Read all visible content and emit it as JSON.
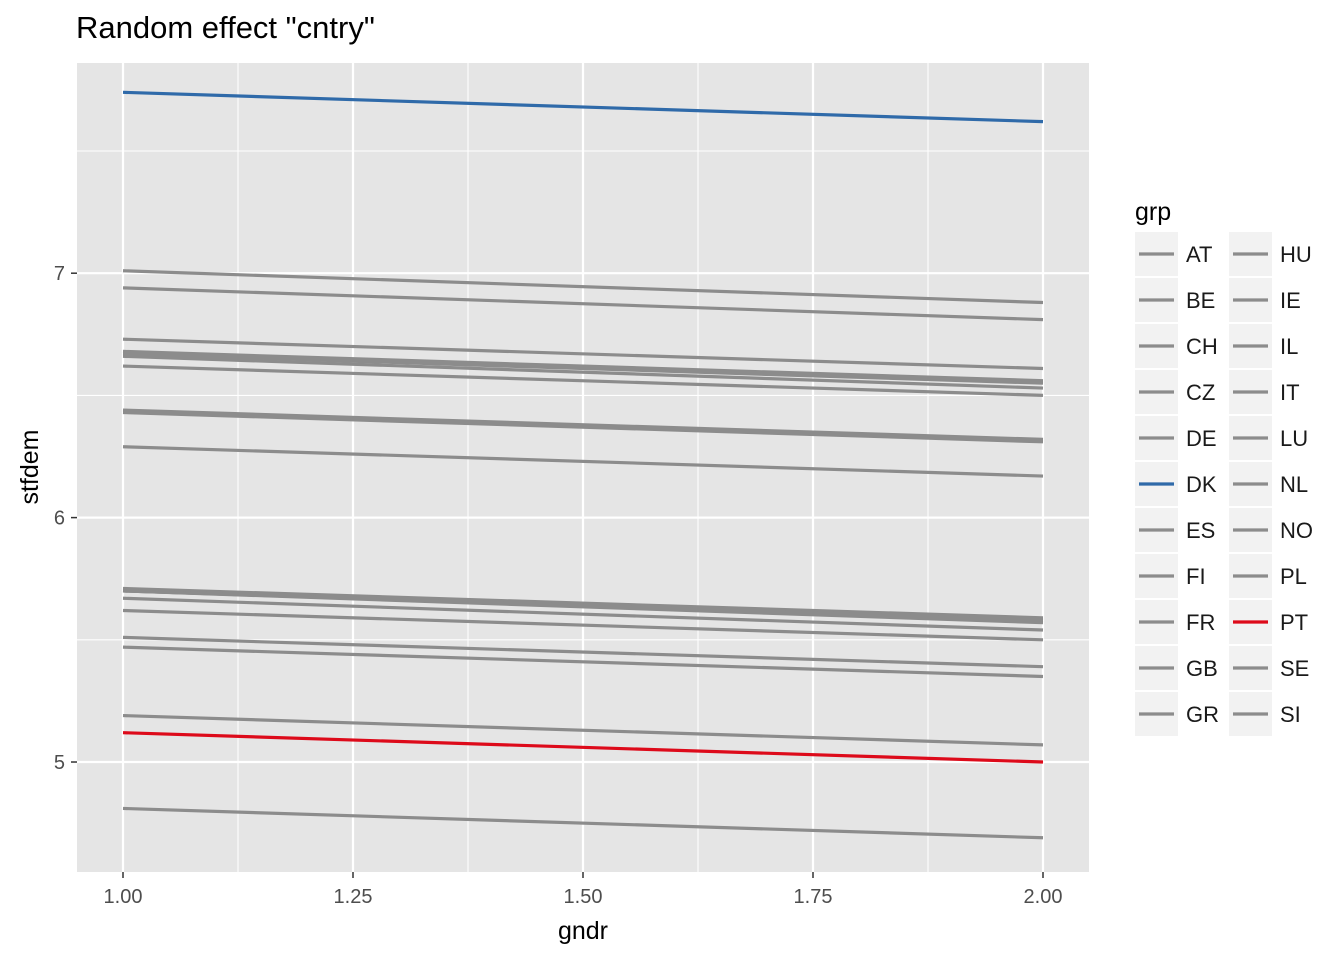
{
  "chart_data": {
    "type": "line",
    "title": "Random effect \"cntry\"",
    "xlabel": "gndr",
    "ylabel": "stfdem",
    "xlim": [
      0.95,
      2.05
    ],
    "ylim": [
      4.55,
      7.86
    ],
    "x_ticks": [
      "1.00",
      "1.25",
      "1.50",
      "1.75",
      "2.00"
    ],
    "x_tick_values": [
      1.0,
      1.25,
      1.5,
      1.75,
      2.0
    ],
    "y_ticks": [
      "5",
      "6",
      "7"
    ],
    "y_tick_values": [
      5,
      6,
      7
    ],
    "x": [
      1.0,
      2.0
    ],
    "grid": true,
    "panel_background": "#e5e5e5",
    "grid_color": "#ffffff",
    "default_line_color": "#8c8c8c",
    "legend": {
      "title": "grp",
      "placement": "right",
      "columns": 2
    },
    "series": [
      {
        "name": "AT",
        "values": [
          5.71,
          5.59
        ],
        "color": "#8c8c8c"
      },
      {
        "name": "BE",
        "values": [
          6.73,
          6.61
        ],
        "color": "#8c8c8c"
      },
      {
        "name": "CH",
        "values": [
          7.01,
          6.88
        ],
        "color": "#8c8c8c"
      },
      {
        "name": "CZ",
        "values": [
          5.51,
          5.39
        ],
        "color": "#8c8c8c"
      },
      {
        "name": "DE",
        "values": [
          6.67,
          6.55
        ],
        "color": "#8c8c8c"
      },
      {
        "name": "DK",
        "values": [
          7.74,
          7.62
        ],
        "color": "#2f6aa9"
      },
      {
        "name": "ES",
        "values": [
          5.19,
          5.07
        ],
        "color": "#8c8c8c"
      },
      {
        "name": "FI",
        "values": [
          6.94,
          6.81
        ],
        "color": "#8c8c8c"
      },
      {
        "name": "FR",
        "values": [
          5.62,
          5.5
        ],
        "color": "#8c8c8c"
      },
      {
        "name": "GB",
        "values": [
          5.7,
          5.58
        ],
        "color": "#8c8c8c"
      },
      {
        "name": "GR",
        "values": [
          5.47,
          5.35
        ],
        "color": "#8c8c8c"
      },
      {
        "name": "HU",
        "values": [
          4.81,
          4.69
        ],
        "color": "#8c8c8c"
      },
      {
        "name": "IE",
        "values": [
          5.67,
          5.54
        ],
        "color": "#8c8c8c"
      },
      {
        "name": "IL",
        "values": [
          6.68,
          6.56
        ],
        "color": "#8c8c8c"
      },
      {
        "name": "IT",
        "values": [
          6.43,
          6.31
        ],
        "color": "#8c8c8c"
      },
      {
        "name": "LU",
        "values": [
          6.66,
          6.53
        ],
        "color": "#8c8c8c"
      },
      {
        "name": "NL",
        "values": [
          6.62,
          6.5
        ],
        "color": "#8c8c8c"
      },
      {
        "name": "NO",
        "values": [
          6.44,
          6.32
        ],
        "color": "#8c8c8c"
      },
      {
        "name": "PL",
        "values": [
          5.7,
          5.57
        ],
        "color": "#8c8c8c"
      },
      {
        "name": "PT",
        "values": [
          5.12,
          5.0
        ],
        "color": "#dd0a1a"
      },
      {
        "name": "SE",
        "values": [
          6.29,
          6.17
        ],
        "color": "#8c8c8c"
      },
      {
        "name": "SI",
        "values": [
          5.7,
          5.58
        ],
        "color": "#8c8c8c"
      }
    ]
  }
}
